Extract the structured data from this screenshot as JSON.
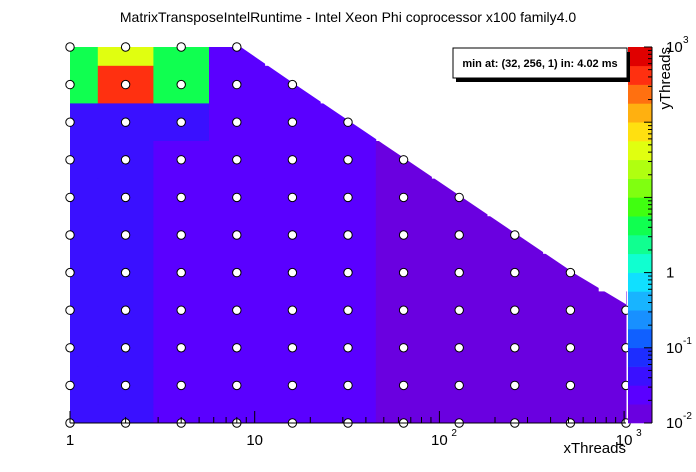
{
  "chart_data": {
    "type": "heatmap",
    "title": "MatrixTransposeIntelRuntime - Intel Xeon Phi coprocessor x100 family4.0",
    "xlabel": "xThreads",
    "ylabel": "yThreads",
    "x_scale": "log2-grid",
    "y_scale": "log2-grid",
    "z_scale": "log",
    "x_tick_labels": [
      {
        "value": 1,
        "base": "1",
        "exp": ""
      },
      {
        "value": 10,
        "base": "10",
        "exp": ""
      },
      {
        "value": 100,
        "base": "10",
        "exp": "2"
      },
      {
        "value": 1000,
        "base": "10",
        "exp": "3"
      }
    ],
    "z_tick_labels": [
      {
        "value": 0.01,
        "base": "10",
        "exp": "-2"
      },
      {
        "value": 0.1,
        "base": "10",
        "exp": "-1"
      },
      {
        "value": 1,
        "base": "1",
        "exp": ""
      },
      {
        "value": 1000,
        "base": "10",
        "exp": "3"
      }
    ],
    "zlim": [
      0.01,
      1000
    ],
    "x_values": [
      1,
      2,
      4,
      8,
      16,
      32,
      64,
      128,
      256,
      512,
      1024
    ],
    "y_values": [
      1,
      2,
      4,
      8,
      16,
      32,
      64,
      128,
      256,
      512,
      1024
    ],
    "z_rows_top_to_bottom": [
      [
        5,
        50,
        5,
        0.03,
        null,
        null,
        null,
        null,
        null,
        null,
        null
      ],
      [
        5,
        450,
        5,
        0.025,
        0.02,
        null,
        null,
        null,
        null,
        null,
        null
      ],
      [
        0.05,
        0.04,
        0.035,
        0.025,
        0.02,
        0.018,
        null,
        null,
        null,
        null,
        null
      ],
      [
        0.045,
        0.04,
        0.03,
        0.022,
        0.02,
        0.018,
        0.016,
        null,
        null,
        null,
        null
      ],
      [
        0.045,
        0.04,
        0.03,
        0.022,
        0.02,
        0.018,
        0.016,
        0.015,
        null,
        null,
        null
      ],
      [
        0.045,
        0.04,
        0.03,
        0.022,
        0.02,
        0.018,
        0.016,
        0.015,
        0.014,
        null,
        null
      ],
      [
        0.05,
        0.045,
        0.03,
        0.022,
        0.02,
        0.018,
        0.016,
        0.015,
        0.014,
        0.014,
        null
      ],
      [
        0.055,
        0.045,
        0.03,
        0.022,
        0.02,
        0.018,
        0.016,
        0.015,
        0.014,
        0.014,
        0.014
      ],
      [
        0.05,
        0.045,
        0.03,
        0.022,
        0.02,
        0.018,
        0.016,
        0.015,
        0.014,
        0.014,
        0.013
      ],
      [
        0.05,
        0.045,
        0.03,
        0.022,
        0.02,
        0.018,
        0.016,
        0.015,
        0.014,
        0.014,
        0.013
      ],
      [
        0.045,
        0.04,
        0.03,
        0.022,
        0.02,
        0.018,
        0.016,
        0.015,
        0.014,
        0.014,
        0.013
      ]
    ],
    "annotation": "min at: (32, 256, 1) in: 4.02 ms",
    "palette": [
      "#6a00e0",
      "#5a00ff",
      "#3a10ff",
      "#1d2dff",
      "#1060ff",
      "#1890ff",
      "#18b4ff",
      "#10e0ff",
      "#10ffd0",
      "#10ff90",
      "#10ff50",
      "#40ff10",
      "#80ff10",
      "#b0ff10",
      "#e0ff10",
      "#ffe010",
      "#ffb010",
      "#ff7010",
      "#ff3010",
      "#e00000"
    ]
  }
}
